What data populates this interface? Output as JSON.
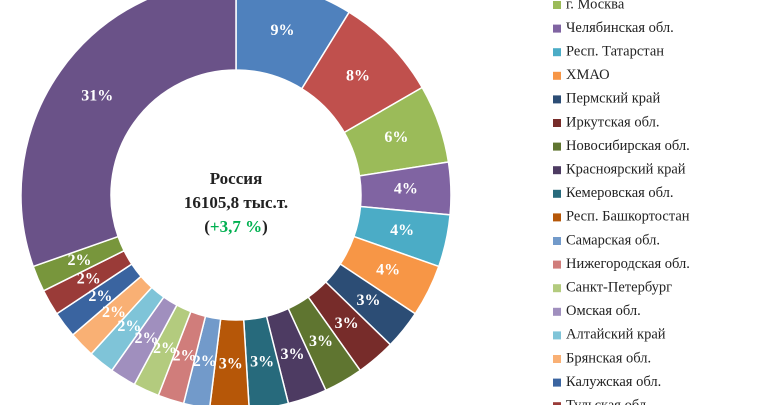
{
  "chart_data": {
    "type": "donut",
    "center_title": "Россия",
    "center_total": "16105,8 тыс.т.",
    "center_change_open": "(",
    "center_change": "+3,7 %",
    "center_change_close": ")",
    "categories": [
      null,
      null,
      "г. Москва",
      "Челябинская обл.",
      "Респ. Татарстан",
      "ХМАО",
      "Пермский край",
      "Иркутская обл.",
      "Новосибирская обл.",
      "Красноярский край",
      "Кемеровская обл.",
      "Респ. Башкортостан",
      "Самарская обл.",
      "Нижегородская обл.",
      "Санкт-Петербург",
      "Омская обл.",
      "Алтайский край",
      "Брянская обл.",
      "Калужская обл.",
      "Тульская обл.",
      null,
      null
    ],
    "values": [
      9,
      8,
      6,
      4,
      4,
      4,
      3,
      3,
      3,
      3,
      3,
      3,
      2,
      2,
      2,
      2,
      2,
      2,
      2,
      2,
      2,
      31
    ],
    "value_labels": [
      "9%",
      "8%",
      "6%",
      "4%",
      "4%",
      "4%",
      "3%",
      "3%",
      "3%",
      "3%",
      "3%",
      "3%",
      "2%",
      "2%",
      "2%",
      "2%",
      "2%",
      "2%",
      "2%",
      "2%",
      "2%",
      "31%"
    ],
    "colors": [
      "#4f81bd",
      "#c0504d",
      "#9bbb59",
      "#8064a2",
      "#4bacc6",
      "#f79646",
      "#2c4d75",
      "#772c2a",
      "#5f7530",
      "#4d3b62",
      "#276a7c",
      "#b65708",
      "#729aca",
      "#d07d7b",
      "#b3cb7e",
      "#a08fbe",
      "#7fc4d8",
      "#f9b074",
      "#3a64a0",
      "#9a3b38",
      "#78963c",
      "#6a5288"
    ],
    "change_color": "#00b050"
  }
}
